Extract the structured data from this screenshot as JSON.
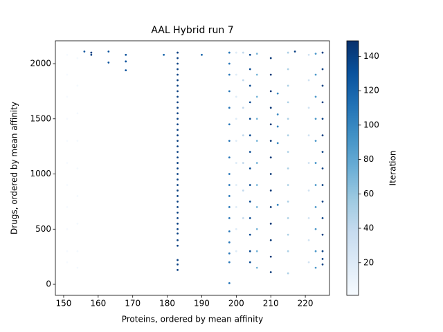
{
  "chart_data": {
    "type": "scatter",
    "title": "AAL Hybrid run 7",
    "x_label": "Proteins, ordered by mean affinity",
    "y_label": "Drugs, ordered by mean affinity",
    "colorbar_label": "Iteration",
    "xlim": [
      147.6,
      227.0
    ],
    "xticks": [
      150,
      160,
      170,
      180,
      190,
      200,
      210,
      220
    ],
    "ylim": [
      -100,
      2207
    ],
    "yticks": [
      0,
      500,
      1000,
      1500,
      2000
    ],
    "clim": [
      1,
      149
    ],
    "cticks": [
      20,
      40,
      60,
      80,
      100,
      120,
      140
    ],
    "colormap": [
      "#f7fbff",
      "#deebf7",
      "#c6dbef",
      "#9ecae1",
      "#6baed6",
      "#4292c6",
      "#2171b5",
      "#08519c",
      "#08306b"
    ],
    "x": [
      151,
      151,
      151,
      151,
      151,
      151,
      151,
      151,
      151,
      151,
      151,
      154,
      154,
      154,
      154,
      154,
      154,
      154,
      154,
      154,
      156,
      158,
      158,
      163,
      163,
      168,
      168,
      168,
      179,
      183,
      183,
      183,
      183,
      183,
      183,
      183,
      183,
      183,
      183,
      183,
      183,
      183,
      183,
      183,
      183,
      183,
      183,
      183,
      183,
      183,
      183,
      183,
      183,
      183,
      183,
      183,
      183,
      183,
      183,
      183,
      183,
      183,
      183,
      183,
      183,
      183,
      183,
      183,
      190,
      198,
      198,
      198,
      198,
      198,
      198,
      198,
      198,
      198,
      198,
      198,
      198,
      198,
      198,
      198,
      198,
      198,
      198,
      200,
      200,
      200,
      200,
      200,
      200,
      200,
      200,
      200,
      200,
      202,
      202,
      202,
      202,
      202,
      202,
      202,
      204,
      204,
      204,
      204,
      204,
      204,
      204,
      204,
      204,
      204,
      204,
      204,
      204,
      204,
      206,
      206,
      206,
      206,
      206,
      206,
      206,
      206,
      206,
      206,
      206,
      210,
      210,
      210,
      210,
      210,
      210,
      210,
      210,
      210,
      210,
      210,
      210,
      210,
      210,
      212,
      212,
      212,
      212,
      212,
      215,
      215,
      215,
      215,
      215,
      215,
      215,
      215,
      215,
      215,
      215,
      215,
      215,
      215,
      217,
      221,
      221,
      221,
      221,
      221,
      221,
      221,
      221,
      221,
      223,
      223,
      223,
      223,
      223,
      223,
      223,
      223,
      223,
      223,
      223,
      225,
      225,
      225,
      225,
      225,
      225,
      225,
      225,
      225,
      225,
      225,
      225,
      225,
      225,
      225
    ],
    "y": [
      2080,
      1900,
      1700,
      1500,
      1300,
      1100,
      900,
      700,
      500,
      300,
      200,
      2050,
      1800,
      1550,
      1300,
      1050,
      800,
      550,
      300,
      150,
      2110,
      2100,
      2080,
      2110,
      2010,
      2080,
      2020,
      1940,
      2080,
      2100,
      2050,
      2000,
      1950,
      1900,
      1850,
      1800,
      1750,
      1700,
      1650,
      1600,
      1550,
      1500,
      1450,
      1400,
      1350,
      1300,
      1250,
      1200,
      1150,
      1100,
      1050,
      1000,
      950,
      900,
      850,
      800,
      750,
      700,
      650,
      600,
      550,
      500,
      460,
      400,
      350,
      220,
      180,
      130,
      2080,
      2100,
      2000,
      1900,
      1750,
      1600,
      1450,
      1300,
      1150,
      1000,
      900,
      800,
      700,
      600,
      480,
      380,
      280,
      200,
      10,
      2100,
      1900,
      1700,
      1500,
      1300,
      1100,
      900,
      700,
      500,
      300,
      2100,
      1850,
      1600,
      1350,
      1100,
      850,
      600,
      2080,
      1950,
      1800,
      1650,
      1500,
      1350,
      1200,
      1050,
      900,
      750,
      600,
      450,
      300,
      200,
      2090,
      1900,
      1700,
      1500,
      1300,
      1100,
      900,
      700,
      500,
      300,
      150,
      2050,
      1900,
      1750,
      1600,
      1450,
      1300,
      1150,
      1000,
      850,
      700,
      550,
      400,
      250,
      110,
      1730,
      1540,
      1430,
      1280,
      720,
      2100,
      1950,
      1800,
      1650,
      1500,
      1350,
      1200,
      1050,
      900,
      750,
      600,
      450,
      300,
      100,
      2110,
      2080,
      1850,
      1600,
      1350,
      1100,
      850,
      600,
      400,
      200,
      2090,
      1900,
      1700,
      1500,
      1300,
      1100,
      900,
      700,
      500,
      300,
      150,
      2100,
      1950,
      1800,
      1650,
      1500,
      1350,
      1200,
      1050,
      900,
      750,
      600,
      450,
      300,
      230,
      180
    ],
    "color_values": [
      2,
      2,
      2,
      2,
      2,
      2,
      2,
      2,
      2,
      2,
      2,
      3,
      3,
      3,
      3,
      3,
      3,
      3,
      3,
      3,
      130,
      140,
      140,
      130,
      130,
      130,
      130,
      130,
      120,
      140,
      140,
      140,
      140,
      140,
      140,
      140,
      140,
      140,
      140,
      140,
      140,
      140,
      140,
      140,
      140,
      140,
      140,
      140,
      140,
      140,
      140,
      140,
      140,
      140,
      140,
      140,
      140,
      140,
      140,
      140,
      140,
      140,
      140,
      140,
      140,
      140,
      140,
      140,
      120,
      110,
      110,
      110,
      110,
      110,
      110,
      110,
      110,
      110,
      110,
      110,
      110,
      110,
      110,
      110,
      110,
      110,
      110,
      20,
      20,
      20,
      20,
      20,
      20,
      20,
      20,
      20,
      20,
      40,
      40,
      40,
      40,
      40,
      40,
      40,
      135,
      135,
      135,
      135,
      135,
      135,
      135,
      135,
      135,
      135,
      135,
      135,
      135,
      135,
      70,
      70,
      70,
      70,
      70,
      70,
      70,
      70,
      70,
      70,
      70,
      145,
      145,
      145,
      145,
      145,
      145,
      145,
      145,
      145,
      145,
      145,
      145,
      145,
      145,
      100,
      100,
      100,
      100,
      100,
      50,
      50,
      50,
      50,
      50,
      50,
      50,
      50,
      50,
      50,
      50,
      50,
      50,
      50,
      140,
      30,
      30,
      30,
      30,
      30,
      30,
      30,
      30,
      30,
      90,
      90,
      90,
      90,
      90,
      90,
      90,
      90,
      90,
      90,
      90,
      140,
      140,
      140,
      140,
      140,
      140,
      140,
      140,
      140,
      140,
      140,
      140,
      140,
      140,
      140
    ]
  }
}
